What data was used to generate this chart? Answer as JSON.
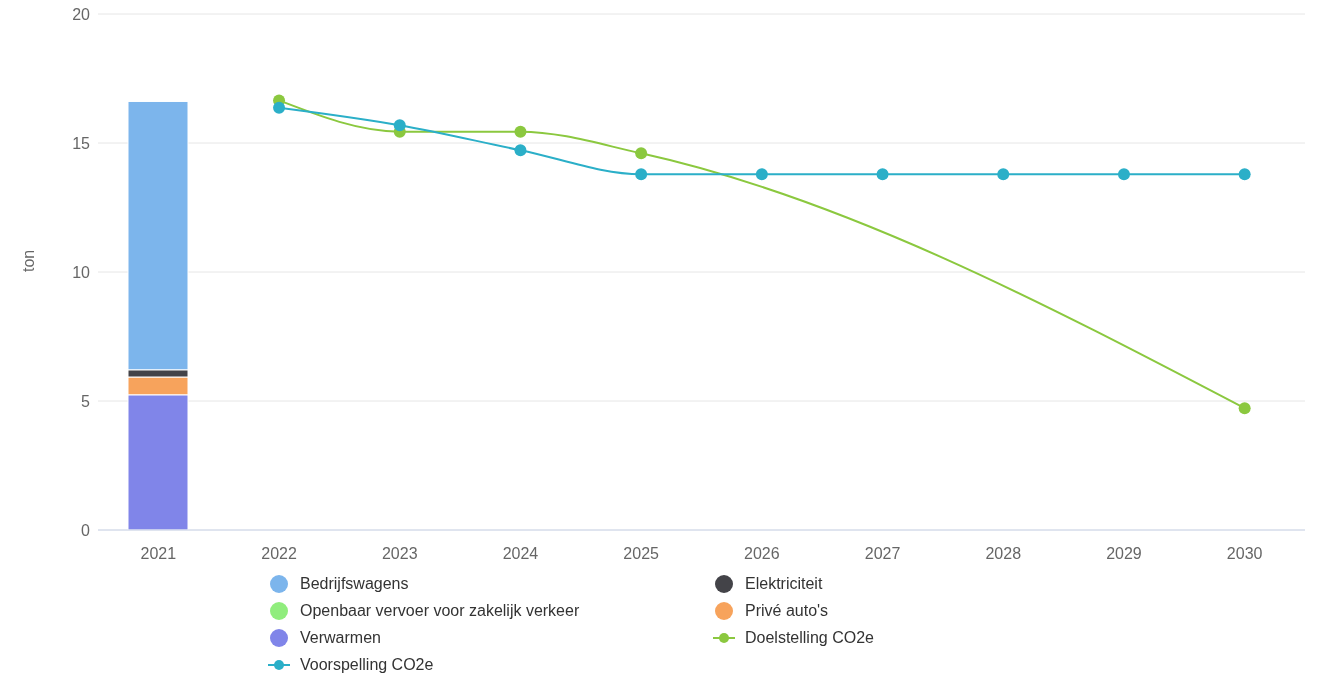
{
  "chart_data": {
    "type": "bar",
    "stacked": true,
    "ylabel": "ton",
    "categories": [
      "2021",
      "2022",
      "2023",
      "2024",
      "2025",
      "2026",
      "2027",
      "2028",
      "2029",
      "2030"
    ],
    "series": [
      {
        "name": "Verwarmen",
        "color": "#8085e9",
        "values": [
          5.24,
          null,
          null,
          null,
          null,
          null,
          null,
          null,
          null,
          null
        ]
      },
      {
        "name": "Privé auto's",
        "color": "#f7a35c",
        "values": [
          0.69,
          null,
          null,
          null,
          null,
          null,
          null,
          null,
          null,
          null
        ]
      },
      {
        "name": "Openbaar vervoer voor zakelijk verkeer",
        "color": "#90ed7d",
        "values": [
          0,
          null,
          null,
          null,
          null,
          null,
          null,
          null,
          null,
          null
        ]
      },
      {
        "name": "Elektriciteit",
        "color": "#434348",
        "values": [
          0.28,
          null,
          null,
          null,
          null,
          null,
          null,
          null,
          null,
          null
        ]
      },
      {
        "name": "Bedrijfswagens",
        "color": "#7cb5ec",
        "values": [
          10.4,
          null,
          null,
          null,
          null,
          null,
          null,
          null,
          null,
          null
        ]
      },
      {
        "name": "Doelstelling CO2e",
        "type": "line",
        "color": "#8bc83f",
        "values": [
          null,
          16.65,
          15.44,
          15.44,
          14.6,
          null,
          null,
          null,
          null,
          4.72
        ]
      },
      {
        "name": "Voorspelling CO2e",
        "type": "line",
        "color": "#2bafc8",
        "values": [
          null,
          16.37,
          15.69,
          14.72,
          13.79,
          13.79,
          13.79,
          13.79,
          13.79,
          13.79
        ]
      }
    ],
    "ylim": [
      0,
      20
    ],
    "yticks": [
      0,
      5,
      10,
      15,
      20
    ],
    "grid": "y",
    "legend": "bottom",
    "marker": "circle"
  }
}
